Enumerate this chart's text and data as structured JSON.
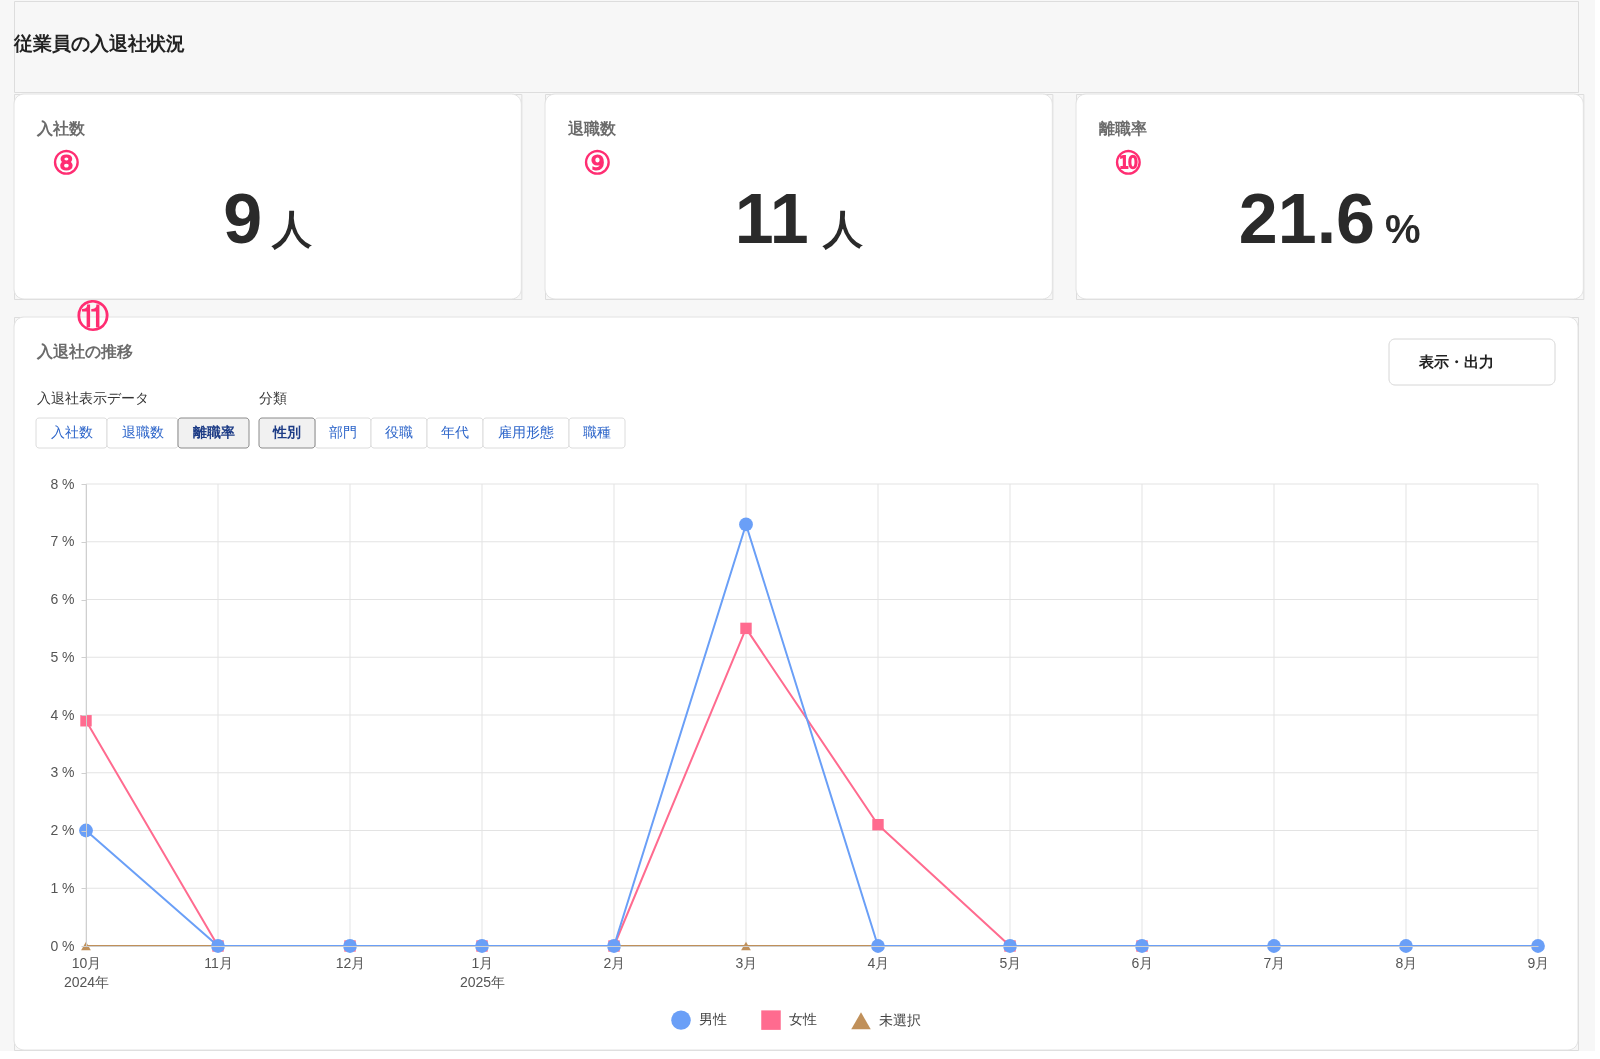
{
  "chart_data": [
    {
      "type": "other",
      "title": "従業員の入退社状況"
    },
    {
      "type": "other",
      "title": "入社数",
      "annotations": [
        "⑧",
        "9",
        "人"
      ]
    },
    {
      "type": "other",
      "title": "退職数",
      "annotations": [
        "⑨",
        "11",
        "人"
      ]
    },
    {
      "type": "other",
      "title": "離職率",
      "annotations": [
        "⑩",
        "21.6",
        "%"
      ]
    },
    {
      "type": "line",
      "title": "入退社の推移",
      "annotations": [
        "⑪",
        "表示・出力",
        "入退社表示データ",
        "入社数",
        "退職数",
        "離職率",
        "分類",
        "性別",
        "部門",
        "役職",
        "年代",
        "雇用形態",
        "職種"
      ],
      "categories": [
        "10月\n2024年",
        "11月",
        "12月",
        "1月\n2025年",
        "2月",
        "3月",
        "4月",
        "5月",
        "6月",
        "7月",
        "8月",
        "9月"
      ],
      "series": [
        {
          "name": "男性",
          "color": "#6a9ff7",
          "marker": "circle",
          "values": [
            2.0,
            0,
            0,
            0,
            0,
            7.3,
            0,
            0,
            0,
            0,
            0,
            0
          ]
        },
        {
          "name": "女性",
          "color": "#ff6b8f",
          "marker": "square",
          "values": [
            3.9,
            0,
            0,
            0,
            0,
            5.5,
            2.1,
            0,
            0,
            null,
            null,
            null
          ]
        },
        {
          "name": "未選択",
          "color": "#c0905a",
          "marker": "triangle",
          "values": [
            0,
            0,
            null,
            null,
            0,
            0,
            0,
            null,
            null,
            null,
            null,
            null
          ]
        }
      ],
      "ylim": [
        0,
        8
      ],
      "yticks": [
        {
          "value": 0,
          "label": "0 %"
        },
        {
          "value": 1,
          "label": "1 %"
        },
        {
          "value": 2,
          "label": "2 %"
        },
        {
          "value": 3,
          "label": "3 %"
        },
        {
          "value": 4,
          "label": "4 %"
        },
        {
          "value": 5,
          "label": "5 %"
        },
        {
          "value": 6,
          "label": "6 %"
        },
        {
          "value": 7,
          "label": "7 %"
        },
        {
          "value": 8,
          "label": "8 %"
        }
      ],
      "grid": true,
      "legend": "bottom"
    }
  ]
}
